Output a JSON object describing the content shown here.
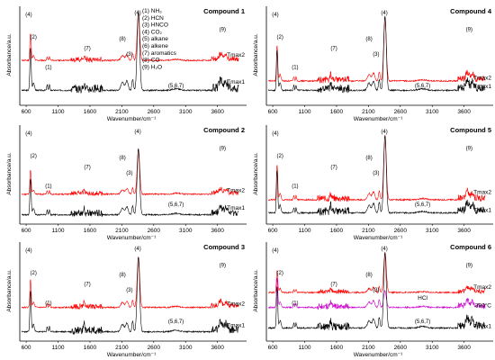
{
  "figure": {
    "xlabel": "Wavenumber/cm⁻¹",
    "ylabel": "Absorbance/a.u.",
    "xticks": [
      600,
      1100,
      1600,
      2100,
      2600,
      3100,
      3600
    ],
    "xlim": [
      500,
      4000
    ],
    "band_legend": [
      "(1) NH₃",
      "(2) HCN",
      "(3) HNCO",
      "(4) CO₂",
      "(5) alkane",
      "(6) alkene",
      "(7) aromatics",
      "(8) CO",
      "(9) H₂O"
    ],
    "colors": {
      "tmax1": "#000000",
      "tmax2": "#ff0000",
      "t390": "#cc00cc"
    }
  },
  "chart_data": [
    {
      "type": "line",
      "title": "Compound 1",
      "xlabel": "Wavenumber/cm⁻¹",
      "ylabel": "Absorbance/a.u.",
      "series": [
        {
          "name": "Tmax2"
        },
        {
          "name": "Tmax1"
        }
      ],
      "annotations": [
        "(4)",
        "(2)",
        "(1)",
        "(7)",
        "(8)",
        "(3)",
        "(4)",
        "(5,6,7)",
        "(9)"
      ],
      "x_markers": [
        670,
        715,
        930,
        965,
        1500,
        1600,
        2110,
        2180,
        2270,
        2360,
        3650,
        3730
      ]
    },
    {
      "type": "line",
      "title": "Compound 4",
      "xlabel": "Wavenumber/cm⁻¹",
      "ylabel": "Absorbance/a.u.",
      "series": [
        {
          "name": "Tmax2"
        },
        {
          "name": "Tmax1"
        }
      ],
      "annotations": [
        "(4)",
        "(2)",
        "(1)",
        "(7)",
        "(8)",
        "(3)",
        "(4)",
        "(5,6,7)",
        "(9)"
      ],
      "x_markers": [
        670,
        715,
        930,
        965,
        1500,
        1600,
        2110,
        2180,
        2270,
        2360,
        3650,
        3730
      ]
    },
    {
      "type": "line",
      "title": "Compound 2",
      "xlabel": "Wavenumber/cm⁻¹",
      "ylabel": "Absorbance/a.u.",
      "series": [
        {
          "name": "Tmax2"
        },
        {
          "name": "Tmax1"
        }
      ],
      "annotations": [
        "(4)",
        "(2)",
        "(1)",
        "(7)",
        "(8)",
        "(3)",
        "(4)",
        "(5,6,7)",
        "(9)"
      ],
      "x_markers": [
        670,
        715,
        930,
        965,
        1500,
        1600,
        2110,
        2180,
        2270,
        2360,
        3650,
        3730
      ]
    },
    {
      "type": "line",
      "title": "Compound 5",
      "xlabel": "Wavenumber/cm⁻¹",
      "ylabel": "Absorbance/a.u.",
      "series": [
        {
          "name": "Tmax2"
        },
        {
          "name": "Tmax1"
        }
      ],
      "annotations": [
        "(4)",
        "(2)",
        "(1)",
        "(7)",
        "(8)",
        "(3)",
        "(4)",
        "(5,6,7)",
        "(9)"
      ],
      "x_markers": [
        670,
        715,
        930,
        965,
        1500,
        1600,
        2110,
        2180,
        2270,
        2360,
        3650,
        3730
      ]
    },
    {
      "type": "line",
      "title": "Compound 3",
      "xlabel": "Wavenumber/cm⁻¹",
      "ylabel": "Absorbance/a.u.",
      "series": [
        {
          "name": "Tmax2"
        },
        {
          "name": "Tmax1"
        }
      ],
      "annotations": [
        "(4)",
        "(2)",
        "(1)",
        "(7)",
        "(8)",
        "(3)",
        "(4)",
        "(5,6,7)",
        "(9)"
      ],
      "x_markers": [
        670,
        715,
        930,
        965,
        1500,
        1600,
        2110,
        2180,
        2270,
        2360,
        3650,
        3730
      ]
    },
    {
      "type": "line",
      "title": "Compound 6",
      "xlabel": "Wavenumber/cm⁻¹",
      "ylabel": "Absorbance/a.u.",
      "series": [
        {
          "name": "Tmax2"
        },
        {
          "name": "390°C"
        },
        {
          "name": "Tmax1"
        }
      ],
      "annotations": [
        "(4)",
        "(2)",
        "(1)",
        "(7)",
        "(8)",
        "(3)",
        "(4)",
        "(5,6,7)",
        "(9)",
        "HCl"
      ],
      "x_markers": [
        670,
        715,
        930,
        965,
        1500,
        1600,
        2110,
        2180,
        2270,
        2360,
        3650,
        3730
      ]
    }
  ]
}
